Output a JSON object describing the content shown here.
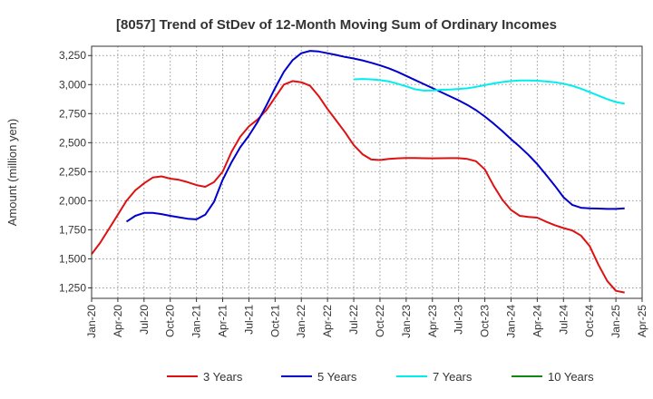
{
  "chart_data": {
    "type": "line",
    "title": "[8057]  Trend of StDev of 12-Month Moving Sum of Ordinary Incomes",
    "ylabel": "Amount (million yen)",
    "xlabel": "",
    "ylim": [
      1160,
      3330
    ],
    "yticks": [
      1250,
      1500,
      1750,
      2000,
      2250,
      2500,
      2750,
      3000,
      3250
    ],
    "ytick_labels": [
      "1,250",
      "1,500",
      "1,750",
      "2,000",
      "2,250",
      "2,500",
      "2,750",
      "3,000",
      "3,250"
    ],
    "xlim": [
      "2020-01",
      "2025-04"
    ],
    "xticks": [
      "2020-01",
      "2020-04",
      "2020-07",
      "2020-10",
      "2021-01",
      "2021-04",
      "2021-07",
      "2021-10",
      "2022-01",
      "2022-04",
      "2022-07",
      "2022-10",
      "2023-01",
      "2023-04",
      "2023-07",
      "2023-10",
      "2024-01",
      "2024-04",
      "2024-07",
      "2024-10",
      "2025-01",
      "2025-04"
    ],
    "xtick_labels": [
      "Jan-20",
      "Apr-20",
      "Jul-20",
      "Oct-20",
      "Jan-21",
      "Apr-21",
      "Jul-21",
      "Oct-21",
      "Jan-22",
      "Apr-22",
      "Jul-22",
      "Oct-22",
      "Jan-23",
      "Apr-23",
      "Jul-23",
      "Oct-23",
      "Jan-24",
      "Apr-24",
      "Jul-24",
      "Oct-24",
      "Jan-25",
      "Apr-25"
    ],
    "grid": true,
    "legend_position": "bottom",
    "series": [
      {
        "name": "3 Years",
        "color": "#dd1111",
        "points": [
          [
            "2020-01",
            1540
          ],
          [
            "2020-02",
            1640
          ],
          [
            "2020-03",
            1760
          ],
          [
            "2020-04",
            1880
          ],
          [
            "2020-05",
            2000
          ],
          [
            "2020-06",
            2090
          ],
          [
            "2020-07",
            2150
          ],
          [
            "2020-08",
            2200
          ],
          [
            "2020-09",
            2210
          ],
          [
            "2020-10",
            2190
          ],
          [
            "2020-11",
            2180
          ],
          [
            "2020-12",
            2160
          ],
          [
            "2021-01",
            2135
          ],
          [
            "2021-02",
            2120
          ],
          [
            "2021-03",
            2160
          ],
          [
            "2021-04",
            2250
          ],
          [
            "2021-05",
            2420
          ],
          [
            "2021-06",
            2550
          ],
          [
            "2021-07",
            2640
          ],
          [
            "2021-08",
            2700
          ],
          [
            "2021-09",
            2780
          ],
          [
            "2021-10",
            2890
          ],
          [
            "2021-11",
            3000
          ],
          [
            "2021-12",
            3030
          ],
          [
            "2022-01",
            3020
          ],
          [
            "2022-02",
            2990
          ],
          [
            "2022-03",
            2900
          ],
          [
            "2022-04",
            2790
          ],
          [
            "2022-05",
            2690
          ],
          [
            "2022-06",
            2590
          ],
          [
            "2022-07",
            2480
          ],
          [
            "2022-08",
            2400
          ],
          [
            "2022-09",
            2355
          ],
          [
            "2022-10",
            2350
          ],
          [
            "2022-11",
            2360
          ],
          [
            "2022-12",
            2365
          ],
          [
            "2023-01",
            2368
          ],
          [
            "2023-02",
            2368
          ],
          [
            "2023-03",
            2366
          ],
          [
            "2023-04",
            2365
          ],
          [
            "2023-05",
            2366
          ],
          [
            "2023-06",
            2367
          ],
          [
            "2023-07",
            2367
          ],
          [
            "2023-08",
            2360
          ],
          [
            "2023-09",
            2340
          ],
          [
            "2023-10",
            2270
          ],
          [
            "2023-11",
            2130
          ],
          [
            "2023-12",
            2010
          ],
          [
            "2024-01",
            1920
          ],
          [
            "2024-02",
            1870
          ],
          [
            "2024-03",
            1860
          ],
          [
            "2024-04",
            1855
          ],
          [
            "2024-05",
            1820
          ],
          [
            "2024-06",
            1790
          ],
          [
            "2024-07",
            1765
          ],
          [
            "2024-08",
            1745
          ],
          [
            "2024-09",
            1700
          ],
          [
            "2024-10",
            1610
          ],
          [
            "2024-11",
            1450
          ],
          [
            "2024-12",
            1310
          ],
          [
            "2025-01",
            1225
          ],
          [
            "2025-02",
            1210
          ]
        ]
      },
      {
        "name": "5 Years",
        "color": "#0000cc",
        "points": [
          [
            "2020-05",
            1820
          ],
          [
            "2020-06",
            1870
          ],
          [
            "2020-07",
            1895
          ],
          [
            "2020-08",
            1895
          ],
          [
            "2020-09",
            1885
          ],
          [
            "2020-10",
            1870
          ],
          [
            "2020-11",
            1858
          ],
          [
            "2020-12",
            1845
          ],
          [
            "2021-01",
            1840
          ],
          [
            "2021-02",
            1880
          ],
          [
            "2021-03",
            1990
          ],
          [
            "2021-04",
            2180
          ],
          [
            "2021-05",
            2330
          ],
          [
            "2021-06",
            2460
          ],
          [
            "2021-07",
            2560
          ],
          [
            "2021-08",
            2680
          ],
          [
            "2021-09",
            2820
          ],
          [
            "2021-10",
            2970
          ],
          [
            "2021-11",
            3110
          ],
          [
            "2021-12",
            3210
          ],
          [
            "2022-01",
            3270
          ],
          [
            "2022-02",
            3290
          ],
          [
            "2022-03",
            3285
          ],
          [
            "2022-04",
            3270
          ],
          [
            "2022-05",
            3255
          ],
          [
            "2022-06",
            3238
          ],
          [
            "2022-07",
            3225
          ],
          [
            "2022-08",
            3208
          ],
          [
            "2022-09",
            3188
          ],
          [
            "2022-10",
            3165
          ],
          [
            "2022-11",
            3140
          ],
          [
            "2022-12",
            3110
          ],
          [
            "2023-01",
            3075
          ],
          [
            "2023-02",
            3040
          ],
          [
            "2023-03",
            3005
          ],
          [
            "2023-04",
            2970
          ],
          [
            "2023-05",
            2935
          ],
          [
            "2023-06",
            2900
          ],
          [
            "2023-07",
            2865
          ],
          [
            "2023-08",
            2825
          ],
          [
            "2023-09",
            2780
          ],
          [
            "2023-10",
            2725
          ],
          [
            "2023-11",
            2665
          ],
          [
            "2023-12",
            2600
          ],
          [
            "2024-01",
            2530
          ],
          [
            "2024-02",
            2465
          ],
          [
            "2024-03",
            2395
          ],
          [
            "2024-04",
            2315
          ],
          [
            "2024-05",
            2225
          ],
          [
            "2024-06",
            2130
          ],
          [
            "2024-07",
            2030
          ],
          [
            "2024-08",
            1965
          ],
          [
            "2024-09",
            1940
          ],
          [
            "2024-10",
            1935
          ],
          [
            "2024-11",
            1933
          ],
          [
            "2024-12",
            1930
          ],
          [
            "2025-01",
            1930
          ],
          [
            "2025-02",
            1935
          ]
        ]
      },
      {
        "name": "7 Years",
        "color": "#00eeee",
        "points": [
          [
            "2022-07",
            3045
          ],
          [
            "2022-08",
            3048
          ],
          [
            "2022-09",
            3045
          ],
          [
            "2022-10",
            3038
          ],
          [
            "2022-11",
            3028
          ],
          [
            "2022-12",
            3008
          ],
          [
            "2023-01",
            2985
          ],
          [
            "2023-02",
            2960
          ],
          [
            "2023-03",
            2948
          ],
          [
            "2023-04",
            2950
          ],
          [
            "2023-05",
            2955
          ],
          [
            "2023-06",
            2958
          ],
          [
            "2023-07",
            2962
          ],
          [
            "2023-08",
            2968
          ],
          [
            "2023-09",
            2980
          ],
          [
            "2023-10",
            2995
          ],
          [
            "2023-11",
            3010
          ],
          [
            "2023-12",
            3022
          ],
          [
            "2024-01",
            3030
          ],
          [
            "2024-02",
            3035
          ],
          [
            "2024-03",
            3035
          ],
          [
            "2024-04",
            3033
          ],
          [
            "2024-05",
            3028
          ],
          [
            "2024-06",
            3020
          ],
          [
            "2024-07",
            3008
          ],
          [
            "2024-08",
            2990
          ],
          [
            "2024-09",
            2965
          ],
          [
            "2024-10",
            2935
          ],
          [
            "2024-11",
            2905
          ],
          [
            "2024-12",
            2875
          ],
          [
            "2025-01",
            2850
          ],
          [
            "2025-02",
            2835
          ]
        ]
      },
      {
        "name": "10 Years",
        "color": "#118811",
        "points": []
      }
    ]
  }
}
